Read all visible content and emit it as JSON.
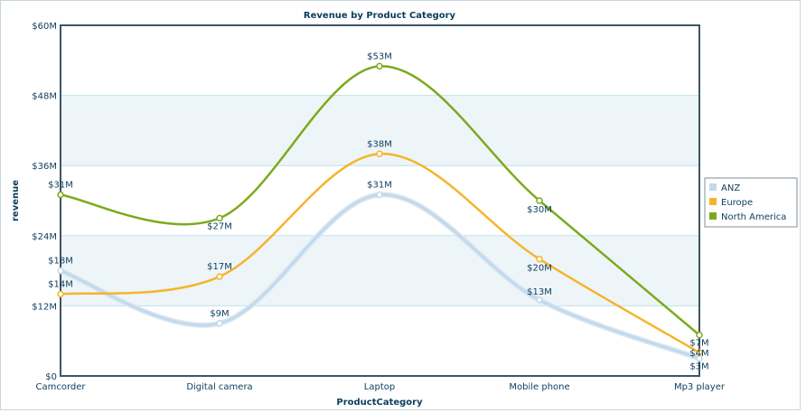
{
  "chart_data": {
    "type": "line",
    "title": "Revenue by Product Category",
    "xlabel": "ProductCategory",
    "ylabel": "revenue",
    "ylim": [
      0,
      60
    ],
    "yticks": [
      "$0",
      "$12M",
      "$24M",
      "$36M",
      "$48M",
      "$60M"
    ],
    "categories": [
      "Camcorder",
      "Digital camera",
      "Laptop",
      "Mobile phone",
      "Mp3 player"
    ],
    "legend_position": "right",
    "series": [
      {
        "name": "ANZ",
        "color": "#c3d9eb",
        "values": [
          18,
          9,
          31,
          13,
          3
        ],
        "labels": [
          "$18M",
          "$9M",
          "$31M",
          "$13M",
          "$3M"
        ]
      },
      {
        "name": "Europe",
        "color": "#f5b52a",
        "values": [
          14,
          17,
          38,
          20,
          4
        ],
        "labels": [
          "$14M",
          "$17M",
          "$38M",
          "$20M",
          "$4M"
        ]
      },
      {
        "name": "North America",
        "color": "#7aab1c",
        "values": [
          31,
          27,
          53,
          30,
          7
        ],
        "labels": [
          "$31M",
          "$27M",
          "$53M",
          "$30M",
          "$7M"
        ]
      }
    ]
  }
}
